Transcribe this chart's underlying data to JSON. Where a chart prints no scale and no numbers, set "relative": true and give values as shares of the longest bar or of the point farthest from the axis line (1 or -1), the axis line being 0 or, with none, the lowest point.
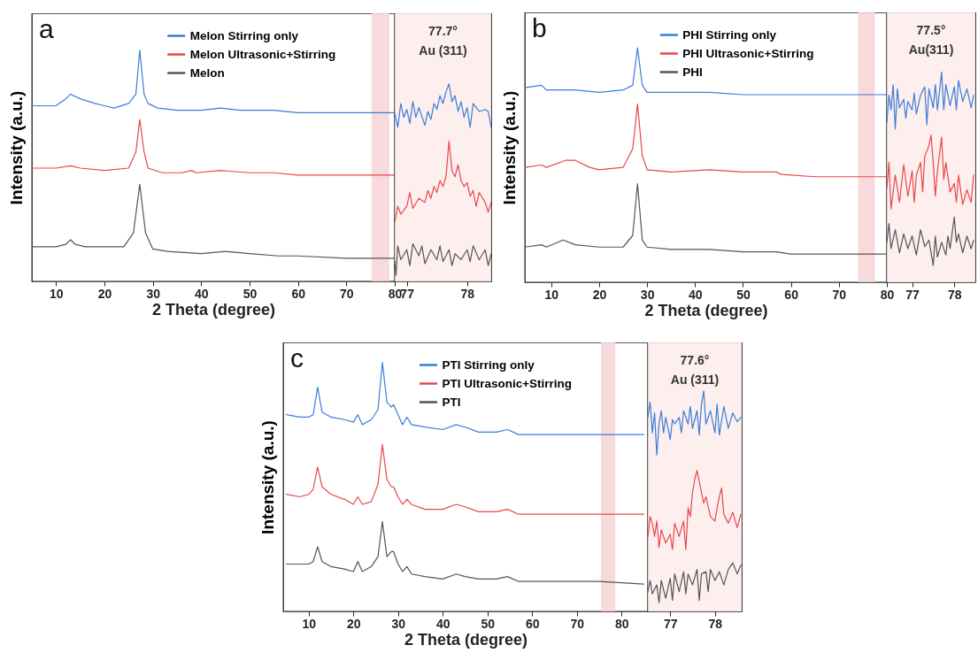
{
  "chart_data": [
    {
      "type": "line",
      "xlabel": "2 Theta (degree)",
      "ylabel": "Intensity (a.u.)",
      "relative": true,
      "legend": "top",
      "xlim": [
        5,
        80
      ],
      "xticks": [
        10,
        20,
        30,
        40,
        50,
        60,
        70,
        80
      ],
      "annotations": [
        "a"
      ],
      "bands": [
        {
          "axis": "x",
          "from": 75.2,
          "to": 78.9,
          "color": "#f7d3d6"
        }
      ],
      "series": [
        {
          "name": "Melon Stirring only",
          "color": "#3b7dd8",
          "x": [
            5,
            10,
            12,
            13,
            15,
            18,
            20,
            22,
            25,
            26.5,
            27.3,
            28.2,
            29,
            31,
            35,
            40,
            44,
            48,
            55,
            60,
            65,
            70,
            80
          ],
          "values": [
            0.76,
            0.76,
            0.79,
            0.81,
            0.79,
            0.77,
            0.76,
            0.75,
            0.77,
            0.81,
            1,
            0.81,
            0.77,
            0.75,
            0.74,
            0.74,
            0.75,
            0.74,
            0.74,
            0.73,
            0.73,
            0.73,
            0.73
          ]
        },
        {
          "name": "Melon Ultrasonic+Stirring",
          "color": "#e8474b",
          "x": [
            5,
            10,
            13,
            15,
            20,
            25,
            26.5,
            27.3,
            28.2,
            29,
            32,
            36,
            38,
            39,
            44,
            50,
            55,
            60,
            70,
            80
          ],
          "values": [
            0.49,
            0.49,
            0.5,
            0.49,
            0.48,
            0.49,
            0.56,
            0.7,
            0.56,
            0.49,
            0.47,
            0.47,
            0.48,
            0.47,
            0.48,
            0.47,
            0.47,
            0.46,
            0.46,
            0.46
          ]
        },
        {
          "name": "Melon",
          "color": "#555555",
          "x": [
            5,
            10,
            12,
            13,
            14,
            16,
            20,
            24,
            26,
            27.3,
            28.5,
            30,
            33,
            40,
            45,
            50,
            56,
            60,
            70,
            80
          ],
          "values": [
            0.15,
            0.15,
            0.16,
            0.18,
            0.16,
            0.15,
            0.15,
            0.15,
            0.21,
            0.42,
            0.21,
            0.14,
            0.13,
            0.12,
            0.13,
            0.12,
            0.11,
            0.11,
            0.1,
            0.1
          ]
        }
      ]
    },
    {
      "type": "line",
      "relative": true,
      "xlim": [
        76.8,
        78.4
      ],
      "xticks": [
        77,
        78
      ],
      "annotations": [
        "77.7°",
        "Au (311)"
      ],
      "bands": [
        {
          "axis": "x",
          "from": 76.8,
          "to": 78.4,
          "color": "#fdeceb"
        }
      ],
      "series": [
        {
          "color": "#3b7dd8",
          "x": [
            76.8,
            76.85,
            76.9,
            76.95,
            77.0,
            77.05,
            77.1,
            77.15,
            77.2,
            77.3,
            77.35,
            77.4,
            77.45,
            77.5,
            77.55,
            77.6,
            77.65,
            77.7,
            77.75,
            77.8,
            77.85,
            77.9,
            77.95,
            78.0,
            78.05,
            78.1,
            78.2,
            78.3,
            78.35,
            78.4
          ],
          "values": [
            0.85,
            0.78,
            0.9,
            0.83,
            0.87,
            0.8,
            0.91,
            0.83,
            0.88,
            0.79,
            0.86,
            0.82,
            0.9,
            0.87,
            0.94,
            0.9,
            0.96,
            1,
            0.91,
            0.94,
            0.86,
            0.91,
            0.83,
            0.88,
            0.78,
            0.9,
            0.86,
            0.87,
            0.86,
            0.78
          ]
        },
        {
          "color": "#e8474b",
          "x": [
            76.8,
            76.85,
            76.9,
            77.0,
            77.05,
            77.1,
            77.2,
            77.3,
            77.35,
            77.4,
            77.45,
            77.5,
            77.55,
            77.6,
            77.65,
            77.7,
            77.75,
            77.8,
            77.85,
            77.9,
            77.95,
            78.0,
            78.05,
            78.1,
            78.15,
            78.2,
            78.3,
            78.35,
            78.4
          ],
          "values": [
            0.3,
            0.38,
            0.34,
            0.38,
            0.45,
            0.37,
            0.42,
            0.4,
            0.46,
            0.42,
            0.48,
            0.45,
            0.51,
            0.48,
            0.53,
            0.71,
            0.56,
            0.53,
            0.59,
            0.51,
            0.48,
            0.5,
            0.43,
            0.46,
            0.38,
            0.45,
            0.4,
            0.35,
            0.4
          ]
        },
        {
          "color": "#555555",
          "x": [
            76.8,
            76.82,
            76.85,
            76.9,
            77.0,
            77.05,
            77.1,
            77.2,
            77.25,
            77.3,
            77.4,
            77.5,
            77.55,
            77.6,
            77.7,
            77.75,
            77.8,
            77.9,
            78.0,
            78.05,
            78.1,
            78.2,
            78.3,
            78.35,
            78.4
          ],
          "values": [
            0.1,
            0.03,
            0.18,
            0.11,
            0.16,
            0.08,
            0.19,
            0.13,
            0.18,
            0.09,
            0.16,
            0.11,
            0.18,
            0.1,
            0.16,
            0.08,
            0.14,
            0.11,
            0.16,
            0.1,
            0.18,
            0.11,
            0.16,
            0.08,
            0.14
          ]
        }
      ]
    },
    {
      "type": "line",
      "xlabel": "2 Theta (degree)",
      "ylabel": "Intensity (a.u.)",
      "relative": true,
      "legend": "top",
      "xlim": [
        4.5,
        80
      ],
      "xticks": [
        10,
        20,
        30,
        40,
        50,
        60,
        70,
        80
      ],
      "annotations": [
        "b"
      ],
      "bands": [
        {
          "axis": "x",
          "from": 74.0,
          "to": 77.5,
          "color": "#f7d3d6"
        }
      ],
      "series": [
        {
          "name": "PHI Stirring only",
          "color": "#3b7dd8",
          "x": [
            4.5,
            8,
            9,
            15,
            20,
            25,
            27,
            28,
            29,
            30,
            35,
            43,
            50,
            57,
            65,
            80
          ],
          "values": [
            0.83,
            0.84,
            0.82,
            0.82,
            0.81,
            0.82,
            0.84,
            1,
            0.84,
            0.81,
            0.81,
            0.81,
            0.8,
            0.8,
            0.8,
            0.8
          ]
        },
        {
          "name": "PHI Ultrasonic+Stirring",
          "color": "#e8474b",
          "x": [
            4.5,
            8,
            9,
            13,
            15,
            18,
            20,
            25,
            27,
            28,
            29,
            30,
            35,
            43,
            50,
            57,
            58,
            65,
            80
          ],
          "values": [
            0.49,
            0.5,
            0.49,
            0.52,
            0.52,
            0.49,
            0.48,
            0.49,
            0.57,
            0.76,
            0.54,
            0.48,
            0.47,
            0.48,
            0.47,
            0.47,
            0.46,
            0.45,
            0.45
          ]
        },
        {
          "name": "PHI",
          "color": "#555555",
          "x": [
            4.5,
            8,
            9,
            12.5,
            15,
            20,
            22,
            25,
            27,
            28,
            29,
            30,
            35,
            43,
            50,
            57,
            60,
            70,
            80
          ],
          "values": [
            0.15,
            0.16,
            0.15,
            0.18,
            0.16,
            0.15,
            0.15,
            0.15,
            0.2,
            0.42,
            0.18,
            0.15,
            0.14,
            0.14,
            0.13,
            0.13,
            0.12,
            0.12,
            0.12
          ]
        }
      ]
    },
    {
      "type": "line",
      "relative": true,
      "xlim": [
        76.4,
        78.5
      ],
      "xticks": [
        77,
        78
      ],
      "annotations": [
        "77.5°",
        "Au(311)"
      ],
      "bands": [
        {
          "axis": "x",
          "from": 76.4,
          "to": 78.5,
          "color": "#fdeceb"
        }
      ],
      "series": [
        {
          "color": "#3b7dd8",
          "x": [
            76.4,
            76.45,
            76.5,
            76.55,
            76.6,
            76.65,
            76.7,
            76.8,
            76.85,
            76.9,
            77.0,
            77.05,
            77.1,
            77.2,
            77.3,
            77.35,
            77.4,
            77.5,
            77.55,
            77.6,
            77.7,
            77.75,
            77.8,
            77.9,
            78.0,
            78.05,
            78.1,
            78.2,
            78.3,
            78.4,
            78.46
          ],
          "values": [
            0.76,
            0.89,
            0.82,
            0.94,
            0.73,
            0.92,
            0.83,
            0.87,
            0.78,
            0.86,
            0.82,
            0.9,
            0.8,
            0.89,
            0.93,
            0.75,
            0.92,
            0.83,
            0.94,
            0.82,
            1,
            0.82,
            0.94,
            0.84,
            0.93,
            0.82,
            0.96,
            0.86,
            0.92,
            0.83,
            0.89
          ]
        },
        {
          "color": "#e8474b",
          "x": [
            76.4,
            76.45,
            76.5,
            76.6,
            76.7,
            76.8,
            76.9,
            77.0,
            77.05,
            77.1,
            77.2,
            77.25,
            77.3,
            77.4,
            77.45,
            77.5,
            77.55,
            77.6,
            77.7,
            77.75,
            77.8,
            77.9,
            78.0,
            78.05,
            78.1,
            78.2,
            78.3,
            78.4,
            78.46
          ],
          "values": [
            0.45,
            0.57,
            0.35,
            0.51,
            0.38,
            0.56,
            0.41,
            0.53,
            0.38,
            0.51,
            0.57,
            0.43,
            0.6,
            0.65,
            0.7,
            0.57,
            0.41,
            0.53,
            0.69,
            0.49,
            0.57,
            0.43,
            0.47,
            0.38,
            0.51,
            0.37,
            0.44,
            0.38,
            0.51
          ]
        },
        {
          "color": "#555555",
          "x": [
            76.4,
            76.45,
            76.5,
            76.6,
            76.7,
            76.8,
            76.9,
            77.0,
            77.1,
            77.2,
            77.3,
            77.4,
            77.5,
            77.55,
            77.6,
            77.7,
            77.8,
            77.85,
            77.9,
            78.0,
            78.05,
            78.1,
            78.2,
            78.3,
            78.4,
            78.46
          ],
          "values": [
            0.19,
            0.28,
            0.16,
            0.25,
            0.14,
            0.23,
            0.16,
            0.22,
            0.13,
            0.25,
            0.17,
            0.2,
            0.08,
            0.22,
            0.12,
            0.19,
            0.13,
            0.22,
            0.16,
            0.31,
            0.19,
            0.23,
            0.14,
            0.22,
            0.16,
            0.2
          ]
        }
      ]
    },
    {
      "type": "line",
      "xlabel": "2 Theta (degree)",
      "ylabel": "Intensity (a.u.)",
      "relative": true,
      "legend": "top",
      "xlim": [
        4.3,
        85.9
      ],
      "xticks": [
        10,
        20,
        30,
        40,
        50,
        60,
        70,
        80
      ],
      "annotations": [
        "c"
      ],
      "bands": [
        {
          "axis": "x",
          "from": 75.4,
          "to": 78.6,
          "color": "#f7d3d6"
        }
      ],
      "series": [
        {
          "name": "PTI Stirring only",
          "color": "#3b7dd8",
          "x": [
            5,
            8,
            10,
            11,
            12,
            13,
            15,
            18,
            20,
            21,
            22,
            24,
            25.5,
            26.5,
            27.5,
            28.5,
            29,
            30,
            31,
            32,
            33,
            36,
            40,
            43,
            45,
            48,
            52,
            54.5,
            57,
            65,
            75,
            85
          ],
          "values": [
            0.79,
            0.78,
            0.78,
            0.79,
            0.9,
            0.8,
            0.78,
            0.77,
            0.76,
            0.79,
            0.75,
            0.77,
            0.81,
            1,
            0.84,
            0.82,
            0.83,
            0.79,
            0.75,
            0.78,
            0.75,
            0.74,
            0.73,
            0.75,
            0.74,
            0.72,
            0.72,
            0.73,
            0.71,
            0.71,
            0.71,
            0.71
          ]
        },
        {
          "name": "PTI Ultrasonic+Stirring",
          "color": "#e8474b",
          "x": [
            5,
            8,
            10,
            11,
            12,
            13,
            15,
            18,
            20,
            21,
            22,
            24,
            25.5,
            26.5,
            27.5,
            28.5,
            29,
            30,
            31,
            32,
            33,
            36,
            40,
            43,
            45,
            48,
            52,
            54.5,
            57,
            65,
            75,
            85
          ],
          "values": [
            0.47,
            0.46,
            0.47,
            0.49,
            0.58,
            0.5,
            0.47,
            0.45,
            0.43,
            0.46,
            0.43,
            0.44,
            0.51,
            0.67,
            0.53,
            0.5,
            0.5,
            0.46,
            0.43,
            0.45,
            0.43,
            0.41,
            0.41,
            0.43,
            0.42,
            0.4,
            0.4,
            0.41,
            0.39,
            0.39,
            0.39,
            0.39
          ]
        },
        {
          "name": "PTI",
          "color": "#555555",
          "x": [
            5,
            8,
            10,
            11,
            12,
            13,
            15,
            18,
            20,
            21,
            22,
            24,
            25.5,
            26.5,
            27.5,
            28.5,
            29,
            30,
            31,
            32,
            33,
            36,
            40,
            43,
            45,
            48,
            52,
            54.5,
            57,
            65,
            75,
            85
          ],
          "values": [
            0.19,
            0.19,
            0.19,
            0.2,
            0.26,
            0.2,
            0.18,
            0.17,
            0.16,
            0.2,
            0.16,
            0.18,
            0.22,
            0.36,
            0.22,
            0.24,
            0.24,
            0.19,
            0.16,
            0.18,
            0.15,
            0.14,
            0.13,
            0.15,
            0.14,
            0.13,
            0.13,
            0.14,
            0.12,
            0.12,
            0.12,
            0.11
          ]
        }
      ]
    },
    {
      "type": "line",
      "relative": true,
      "xlim": [
        76.5,
        78.6
      ],
      "xticks": [
        77,
        78
      ],
      "annotations": [
        "77.6°",
        "Au (311)"
      ],
      "bands": [
        {
          "axis": "x",
          "from": 76.5,
          "to": 78.6,
          "color": "#fdeceb"
        }
      ],
      "series": [
        {
          "color": "#3b7dd8",
          "x": [
            76.5,
            76.55,
            76.6,
            76.65,
            76.7,
            76.75,
            76.8,
            76.85,
            76.9,
            77.0,
            77.05,
            77.1,
            77.2,
            77.25,
            77.3,
            77.4,
            77.45,
            77.5,
            77.6,
            77.65,
            77.7,
            77.75,
            77.8,
            77.9,
            78.0,
            78.05,
            78.1,
            78.2,
            78.3,
            78.4,
            78.5,
            78.58
          ],
          "values": [
            0.88,
            0.95,
            0.81,
            0.9,
            0.71,
            0.85,
            0.91,
            0.81,
            0.88,
            0.78,
            0.87,
            0.85,
            0.88,
            0.81,
            0.91,
            0.85,
            0.93,
            0.83,
            0.91,
            0.8,
            0.94,
            1,
            0.85,
            0.91,
            0.81,
            0.94,
            0.8,
            0.93,
            0.83,
            0.9,
            0.86,
            0.88
          ]
        },
        {
          "color": "#e8474b",
          "x": [
            76.5,
            76.55,
            76.6,
            76.65,
            76.7,
            76.75,
            76.8,
            76.9,
            77.0,
            77.05,
            77.1,
            77.2,
            77.3,
            77.35,
            77.4,
            77.45,
            77.5,
            77.55,
            77.6,
            77.7,
            77.75,
            77.8,
            77.9,
            78.0,
            78.05,
            78.1,
            78.15,
            78.2,
            78.3,
            78.4,
            78.5,
            78.58
          ],
          "values": [
            0.34,
            0.43,
            0.4,
            0.34,
            0.41,
            0.29,
            0.37,
            0.31,
            0.35,
            0.28,
            0.4,
            0.34,
            0.41,
            0.28,
            0.47,
            0.43,
            0.54,
            0.6,
            0.64,
            0.54,
            0.49,
            0.52,
            0.43,
            0.41,
            0.47,
            0.52,
            0.56,
            0.44,
            0.4,
            0.45,
            0.38,
            0.44
          ]
        },
        {
          "color": "#555555",
          "x": [
            76.5,
            76.55,
            76.6,
            76.7,
            76.75,
            76.8,
            76.9,
            77.0,
            77.05,
            77.1,
            77.2,
            77.3,
            77.35,
            77.4,
            77.5,
            77.6,
            77.65,
            77.7,
            77.8,
            77.85,
            77.9,
            78.0,
            78.1,
            78.2,
            78.3,
            78.4,
            78.5,
            78.58
          ],
          "values": [
            0.09,
            0.14,
            0.08,
            0.12,
            0.04,
            0.14,
            0.06,
            0.15,
            0.05,
            0.17,
            0.09,
            0.18,
            0.08,
            0.17,
            0.12,
            0.19,
            0.05,
            0.17,
            0.18,
            0.09,
            0.19,
            0.14,
            0.18,
            0.12,
            0.19,
            0.22,
            0.17,
            0.21
          ]
        }
      ]
    }
  ]
}
